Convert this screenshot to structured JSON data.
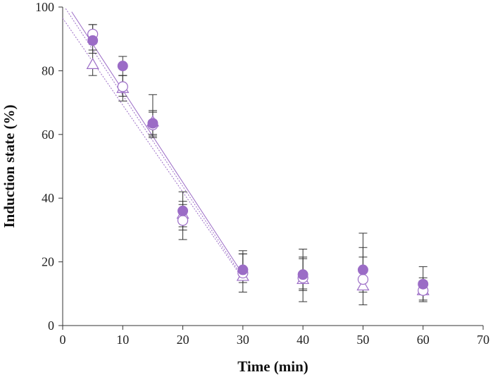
{
  "chart_data": {
    "type": "scatter",
    "title": "",
    "xlabel": "Time (min)",
    "ylabel": "Induction state (%)",
    "xlim": [
      0,
      70
    ],
    "ylim": [
      0,
      100
    ],
    "xticks": [
      "0",
      "10",
      "20",
      "30",
      "40",
      "50",
      "60",
      "70"
    ],
    "yticks": [
      "0",
      "20",
      "40",
      "60",
      "80",
      "100"
    ],
    "grid": false,
    "legend": "none",
    "color": "#9b6cc6",
    "series": [
      {
        "marker": "filled-circle",
        "x": [
          5,
          10,
          15,
          20,
          30,
          40,
          50,
          60
        ],
        "y": [
          89.5,
          81.5,
          63.5,
          36,
          17.5,
          16,
          17.5,
          13
        ],
        "yerr_low": [
          4,
          3,
          4.5,
          5,
          3,
          5,
          4,
          3
        ],
        "yerr_high": [
          5,
          3,
          9,
          6,
          6,
          8,
          11.5,
          5.5
        ],
        "fit": {
          "x": [
            1.5,
            29.5
          ],
          "y": [
            98.5,
            17.5
          ],
          "style": "solid"
        }
      },
      {
        "marker": "open-circle",
        "x": [
          5,
          10,
          15,
          20,
          30,
          40,
          50,
          60
        ],
        "y": [
          91.5,
          75,
          63,
          33,
          16.5,
          15,
          14.5,
          11
        ],
        "yerr_low": [
          3,
          3,
          3.5,
          6,
          3,
          3.5,
          4,
          3
        ],
        "yerr_high": [
          3,
          3.5,
          4,
          5,
          6,
          6,
          10,
          3
        ],
        "fit": {
          "x": [
            0.5,
            29.5
          ],
          "y": [
            99.5,
            16.5
          ],
          "style": "dotted"
        }
      },
      {
        "marker": "open-triangle",
        "x": [
          5,
          10,
          15,
          20,
          30,
          40,
          50,
          60
        ],
        "y": [
          82,
          74.5,
          64,
          35,
          15.5,
          14.5,
          12.5,
          11
        ],
        "yerr_low": [
          3.5,
          4,
          4,
          5,
          5,
          7,
          6,
          3.5
        ],
        "yerr_high": [
          4.5,
          4,
          3.5,
          4,
          7,
          7,
          9,
          4
        ],
        "fit": {
          "x": [
            0,
            29.5
          ],
          "y": [
            96.5,
            16
          ],
          "style": "dotted"
        }
      }
    ]
  }
}
